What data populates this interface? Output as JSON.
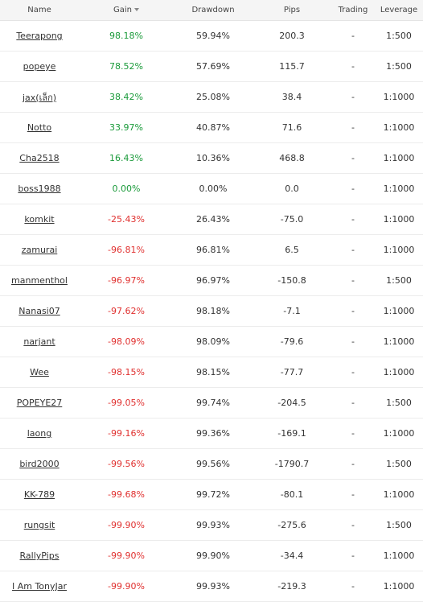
{
  "header": {
    "name": "Name",
    "gain": "Gain",
    "drawdown": "Drawdown",
    "pips": "Pips",
    "trading": "Trading",
    "leverage": "Leverage"
  },
  "rows": [
    {
      "name": "Teerapong",
      "gain": "98.18%",
      "drawdown": "59.94%",
      "pips": "200.3",
      "trading": "-",
      "leverage": "1:500",
      "positive": true
    },
    {
      "name": "popeye",
      "gain": "78.52%",
      "drawdown": "57.69%",
      "pips": "115.7",
      "trading": "-",
      "leverage": "1:500",
      "positive": true
    },
    {
      "name": "jax(เล็ก)",
      "gain": "38.42%",
      "drawdown": "25.08%",
      "pips": "38.4",
      "trading": "-",
      "leverage": "1:1000",
      "positive": true
    },
    {
      "name": "Notto",
      "gain": "33.97%",
      "drawdown": "40.87%",
      "pips": "71.6",
      "trading": "-",
      "leverage": "1:1000",
      "positive": true
    },
    {
      "name": "Cha2518",
      "gain": "16.43%",
      "drawdown": "10.36%",
      "pips": "468.8",
      "trading": "-",
      "leverage": "1:1000",
      "positive": true
    },
    {
      "name": "boss1988",
      "gain": "0.00%",
      "drawdown": "0.00%",
      "pips": "0.0",
      "trading": "-",
      "leverage": "1:1000",
      "positive": true
    },
    {
      "name": "komkit",
      "gain": "-25.43%",
      "drawdown": "26.43%",
      "pips": "-75.0",
      "trading": "-",
      "leverage": "1:1000",
      "positive": false
    },
    {
      "name": "zamurai",
      "gain": "-96.81%",
      "drawdown": "96.81%",
      "pips": "6.5",
      "trading": "-",
      "leverage": "1:1000",
      "positive": false
    },
    {
      "name": "manmenthol",
      "gain": "-96.97%",
      "drawdown": "96.97%",
      "pips": "-150.8",
      "trading": "-",
      "leverage": "1:500",
      "positive": false
    },
    {
      "name": "Nanasi07",
      "gain": "-97.62%",
      "drawdown": "98.18%",
      "pips": "-7.1",
      "trading": "-",
      "leverage": "1:1000",
      "positive": false
    },
    {
      "name": "narjant",
      "gain": "-98.09%",
      "drawdown": "98.09%",
      "pips": "-79.6",
      "trading": "-",
      "leverage": "1:1000",
      "positive": false
    },
    {
      "name": "Wee",
      "gain": "-98.15%",
      "drawdown": "98.15%",
      "pips": "-77.7",
      "trading": "-",
      "leverage": "1:1000",
      "positive": false
    },
    {
      "name": "POPEYE27",
      "gain": "-99.05%",
      "drawdown": "99.74%",
      "pips": "-204.5",
      "trading": "-",
      "leverage": "1:500",
      "positive": false
    },
    {
      "name": "laong",
      "gain": "-99.16%",
      "drawdown": "99.36%",
      "pips": "-169.1",
      "trading": "-",
      "leverage": "1:1000",
      "positive": false
    },
    {
      "name": "bird2000",
      "gain": "-99.56%",
      "drawdown": "99.56%",
      "pips": "-1790.7",
      "trading": "-",
      "leverage": "1:500",
      "positive": false
    },
    {
      "name": "KK-789",
      "gain": "-99.68%",
      "drawdown": "99.72%",
      "pips": "-80.1",
      "trading": "-",
      "leverage": "1:1000",
      "positive": false
    },
    {
      "name": "rungsit",
      "gain": "-99.90%",
      "drawdown": "99.93%",
      "pips": "-275.6",
      "trading": "-",
      "leverage": "1:500",
      "positive": false
    },
    {
      "name": "RallyPips",
      "gain": "-99.90%",
      "drawdown": "99.90%",
      "pips": "-34.4",
      "trading": "-",
      "leverage": "1:1000",
      "positive": false
    },
    {
      "name": "I Am TonyJar",
      "gain": "-99.90%",
      "drawdown": "99.93%",
      "pips": "-219.3",
      "trading": "-",
      "leverage": "1:1000",
      "positive": false
    }
  ],
  "colors": {
    "positive": "#1a9a3a",
    "negative": "#e0302f"
  },
  "icons": {
    "gain_sort": "sort-desc-icon"
  }
}
